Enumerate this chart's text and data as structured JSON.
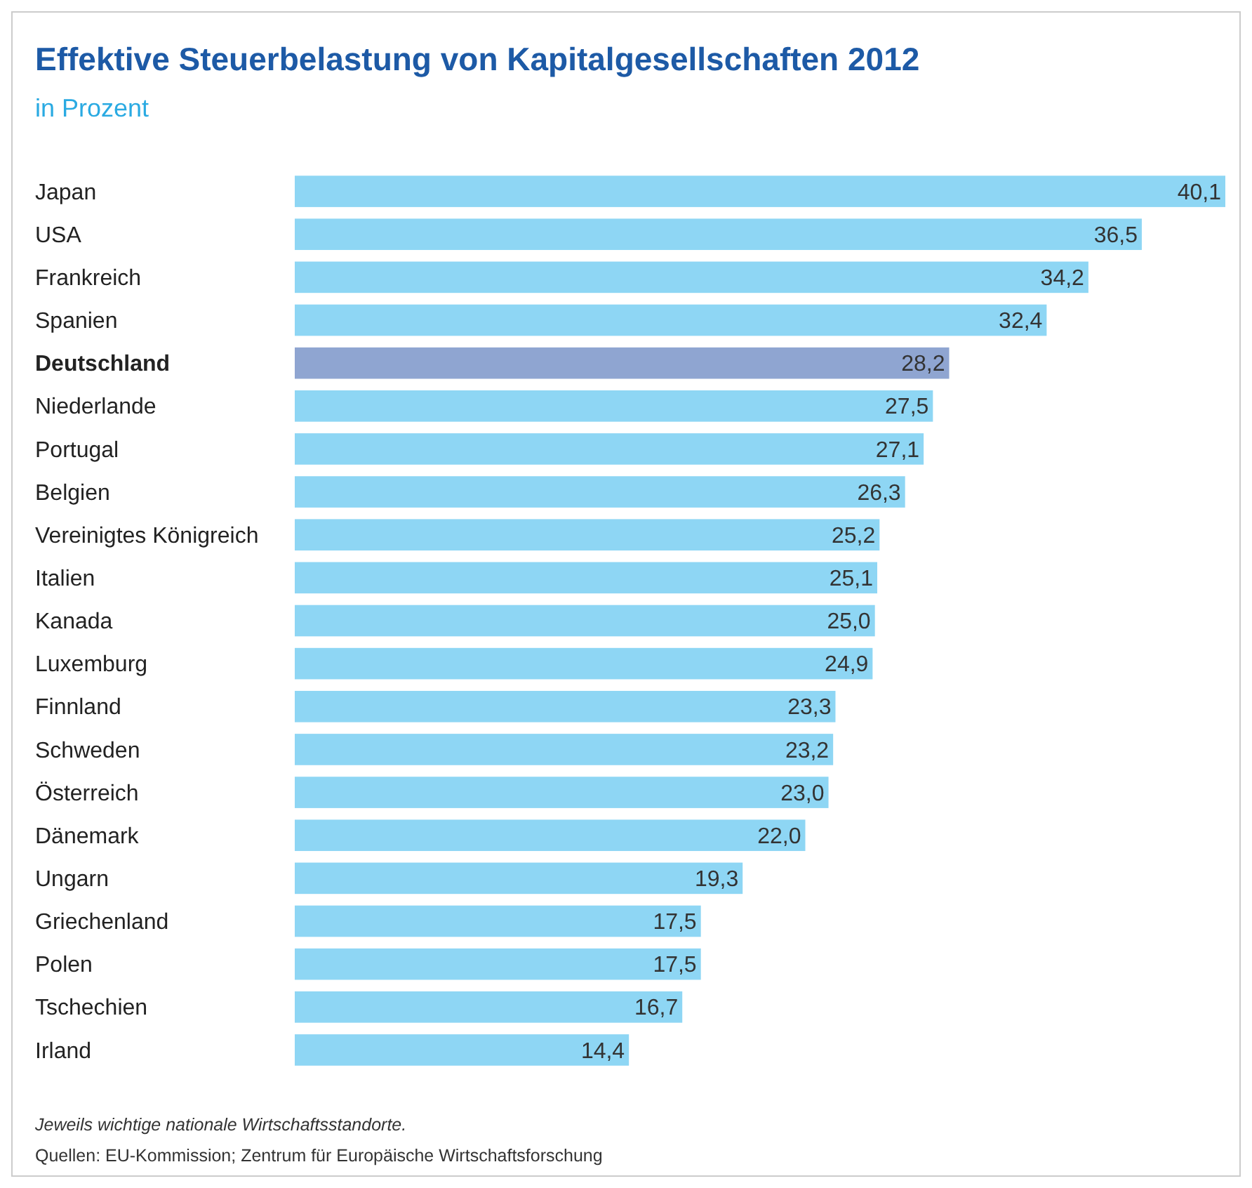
{
  "chart_data": {
    "type": "bar",
    "orientation": "horizontal",
    "title": "Effektive Steuerbelastung von Kapitalgesellschaften 2012",
    "subtitle": "in Prozent",
    "categories": [
      "Japan",
      "USA",
      "Frankreich",
      "Spanien",
      "Deutschland",
      "Niederlande",
      "Portugal",
      "Belgien",
      "Vereinigtes Königreich",
      "Italien",
      "Kanada",
      "Luxemburg",
      "Finnland",
      "Schweden",
      "Österreich",
      "Dänemark",
      "Ungarn",
      "Griechenland",
      "Polen",
      "Tschechien",
      "Irland"
    ],
    "values": [
      40.1,
      36.5,
      34.2,
      32.4,
      28.2,
      27.5,
      27.1,
      26.3,
      25.2,
      25.1,
      25.0,
      24.9,
      23.3,
      23.2,
      23.0,
      22.0,
      19.3,
      17.5,
      17.5,
      16.7,
      14.4
    ],
    "value_labels": [
      "40,1",
      "36,5",
      "34,2",
      "32,4",
      "28,2",
      "27,5",
      "27,1",
      "26,3",
      "25,2",
      "25,1",
      "25,0",
      "24,9",
      "23,3",
      "23,2",
      "23,0",
      "22,0",
      "19,3",
      "17,5",
      "17,5",
      "16,7",
      "14,4"
    ],
    "colors": [
      "#8ed6f4",
      "#8ed6f4",
      "#8ed6f4",
      "#8ed6f4",
      "#8fa5d1",
      "#8ed6f4",
      "#8ed6f4",
      "#8ed6f4",
      "#8ed6f4",
      "#8ed6f4",
      "#8ed6f4",
      "#8ed6f4",
      "#8ed6f4",
      "#8ed6f4",
      "#8ed6f4",
      "#8ed6f4",
      "#8ed6f4",
      "#8ed6f4",
      "#8ed6f4",
      "#8ed6f4",
      "#8ed6f4"
    ],
    "color": "#8ed6f4",
    "annotations": [
      "Jeweils wichtige nationale Wirtschaftsstandorte.",
      "Quellen: EU-Kommission; Zentrum für Europäische Wirtschaftsforschung"
    ]
  }
}
